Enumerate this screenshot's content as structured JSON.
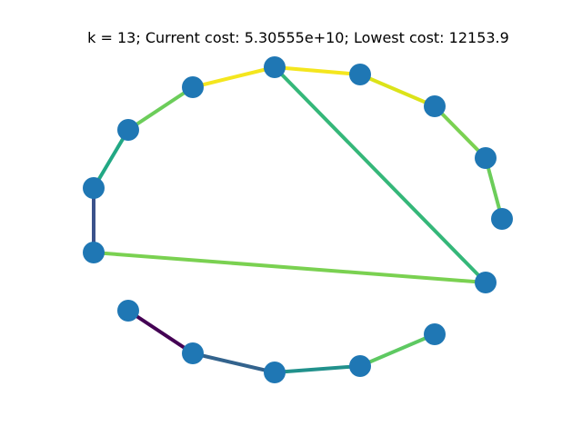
{
  "title": "k = 13; Current cost: 5.30555e+10; Lowest cost: 12153.9",
  "node_color": "#1f77b4",
  "edges": [
    {
      "from": 0,
      "to": 1,
      "color": "#f4e61e"
    },
    {
      "from": 1,
      "to": 2,
      "color": "#dce319"
    },
    {
      "from": 2,
      "to": 3,
      "color": "#7ad151"
    },
    {
      "from": 3,
      "to": 4,
      "color": "#6ccd5a"
    },
    {
      "from": 0,
      "to": 5,
      "color": "#f4e61e"
    },
    {
      "from": 5,
      "to": 6,
      "color": "#6ccd5a"
    },
    {
      "from": 6,
      "to": 7,
      "color": "#22a884"
    },
    {
      "from": 7,
      "to": 8,
      "color": "#3b528b"
    },
    {
      "from": 8,
      "to": 9,
      "color": "#7ad151"
    },
    {
      "from": 0,
      "to": 9,
      "color": "#35b779"
    },
    {
      "from": 10,
      "to": 11,
      "color": "#440154"
    },
    {
      "from": 11,
      "to": 12,
      "color": "#33638d"
    },
    {
      "from": 12,
      "to": 13,
      "color": "#21918c"
    },
    {
      "from": 13,
      "to": 14,
      "color": "#5ec962"
    }
  ]
}
